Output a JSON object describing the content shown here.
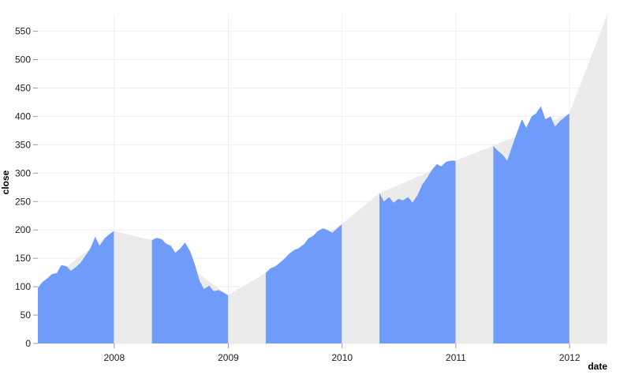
{
  "chart_data": {
    "type": "area",
    "title": "",
    "xlabel": "date",
    "ylabel": "close",
    "xlim": [
      "2007-05-01",
      "2012-05-01"
    ],
    "ylim": [
      0,
      580
    ],
    "y_ticks": [
      0,
      50,
      100,
      150,
      200,
      250,
      300,
      350,
      400,
      450,
      500,
      550
    ],
    "x_ticks": [
      "2008",
      "2009",
      "2010",
      "2011",
      "2012"
    ],
    "grid": true,
    "colors": {
      "area": "#6f9cfb",
      "background_area": "#ebebeb",
      "grid": "#eeeeee"
    },
    "background_series": {
      "name": "",
      "points": [
        [
          "2007-05-01",
          98
        ],
        [
          "2007-12-31",
          198
        ],
        [
          "2008-05-01",
          182
        ],
        [
          "2008-12-31",
          85
        ],
        [
          "2009-05-01",
          124
        ],
        [
          "2009-12-31",
          210
        ],
        [
          "2010-05-01",
          265
        ],
        [
          "2010-12-31",
          322
        ],
        [
          "2011-05-01",
          348
        ],
        [
          "2011-12-31",
          405
        ],
        [
          "2012-05-01",
          580
        ]
      ]
    },
    "series": [
      {
        "name": "",
        "points": [
          [
            "2007-05-01",
            98
          ],
          [
            "2007-05-15",
            108
          ],
          [
            "2007-06-01",
            115
          ],
          [
            "2007-06-15",
            122
          ],
          [
            "2007-07-01",
            124
          ],
          [
            "2007-07-15",
            138
          ],
          [
            "2007-08-01",
            136
          ],
          [
            "2007-08-15",
            128
          ],
          [
            "2007-09-01",
            135
          ],
          [
            "2007-09-15",
            142
          ],
          [
            "2007-10-01",
            155
          ],
          [
            "2007-10-15",
            166
          ],
          [
            "2007-11-01",
            188
          ],
          [
            "2007-11-15",
            172
          ],
          [
            "2007-12-01",
            185
          ],
          [
            "2007-12-15",
            192
          ],
          [
            "2007-12-31",
            198
          ]
        ]
      },
      {
        "name": "",
        "points": [
          [
            "2008-05-01",
            182
          ],
          [
            "2008-05-15",
            186
          ],
          [
            "2008-06-01",
            184
          ],
          [
            "2008-06-15",
            176
          ],
          [
            "2008-07-01",
            172
          ],
          [
            "2008-07-15",
            160
          ],
          [
            "2008-08-01",
            168
          ],
          [
            "2008-08-15",
            178
          ],
          [
            "2008-09-01",
            162
          ],
          [
            "2008-09-15",
            140
          ],
          [
            "2008-10-01",
            110
          ],
          [
            "2008-10-15",
            96
          ],
          [
            "2008-11-01",
            102
          ],
          [
            "2008-11-15",
            92
          ],
          [
            "2008-12-01",
            94
          ],
          [
            "2008-12-15",
            90
          ],
          [
            "2008-12-31",
            85
          ]
        ]
      },
      {
        "name": "",
        "points": [
          [
            "2009-05-01",
            124
          ],
          [
            "2009-05-15",
            132
          ],
          [
            "2009-06-01",
            136
          ],
          [
            "2009-06-15",
            142
          ],
          [
            "2009-07-01",
            150
          ],
          [
            "2009-07-15",
            158
          ],
          [
            "2009-08-01",
            165
          ],
          [
            "2009-08-15",
            168
          ],
          [
            "2009-09-01",
            175
          ],
          [
            "2009-09-15",
            185
          ],
          [
            "2009-10-01",
            190
          ],
          [
            "2009-10-15",
            198
          ],
          [
            "2009-11-01",
            203
          ],
          [
            "2009-11-15",
            200
          ],
          [
            "2009-12-01",
            195
          ],
          [
            "2009-12-15",
            202
          ],
          [
            "2009-12-31",
            210
          ]
        ]
      },
      {
        "name": "",
        "points": [
          [
            "2010-05-01",
            265
          ],
          [
            "2010-05-15",
            250
          ],
          [
            "2010-06-01",
            258
          ],
          [
            "2010-06-15",
            248
          ],
          [
            "2010-07-01",
            255
          ],
          [
            "2010-07-15",
            252
          ],
          [
            "2010-08-01",
            258
          ],
          [
            "2010-08-15",
            248
          ],
          [
            "2010-09-01",
            262
          ],
          [
            "2010-09-15",
            280
          ],
          [
            "2010-10-01",
            292
          ],
          [
            "2010-10-15",
            305
          ],
          [
            "2010-11-01",
            316
          ],
          [
            "2010-11-15",
            312
          ],
          [
            "2010-12-01",
            320
          ],
          [
            "2010-12-15",
            322
          ],
          [
            "2010-12-31",
            322
          ]
        ]
      },
      {
        "name": "",
        "points": [
          [
            "2011-05-01",
            348
          ],
          [
            "2011-05-15",
            340
          ],
          [
            "2011-06-01",
            332
          ],
          [
            "2011-06-15",
            322
          ],
          [
            "2011-07-01",
            348
          ],
          [
            "2011-07-15",
            370
          ],
          [
            "2011-08-01",
            395
          ],
          [
            "2011-08-15",
            380
          ],
          [
            "2011-09-01",
            400
          ],
          [
            "2011-09-15",
            405
          ],
          [
            "2011-10-01",
            418
          ],
          [
            "2011-10-15",
            395
          ],
          [
            "2011-11-01",
            400
          ],
          [
            "2011-11-15",
            382
          ],
          [
            "2011-12-01",
            392
          ],
          [
            "2011-12-15",
            398
          ],
          [
            "2011-12-31",
            405
          ]
        ]
      }
    ]
  }
}
